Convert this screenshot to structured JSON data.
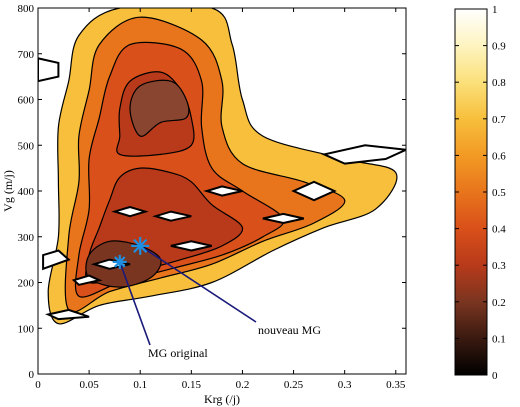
{
  "chart_data": {
    "type": "heatmap",
    "xlabel": "Krg (/j)",
    "ylabel": "Vg (m/j)",
    "xlim": [
      0,
      0.36
    ],
    "ylim": [
      0,
      800
    ],
    "x_ticks": [
      "0",
      "0.05",
      "0.1",
      "0.15",
      "0.2",
      "0.25",
      "0.3",
      "0.35"
    ],
    "y_ticks": [
      "0",
      "100",
      "200",
      "300",
      "400",
      "500",
      "600",
      "700",
      "800"
    ],
    "colorbar": {
      "range": [
        0,
        1
      ],
      "ticks": [
        "0",
        "0.1",
        "0.2",
        "0.3",
        "0.4",
        "0.5",
        "0.6",
        "0.7",
        "0.8",
        "0.9",
        "1"
      ],
      "colormap": "hot",
      "stops": [
        "#000000",
        "#3a1a10",
        "#7a3520",
        "#b83a1a",
        "#d9501a",
        "#e8751c",
        "#f29a24",
        "#f7bf3c",
        "#fbe07a",
        "#fdf4c0",
        "#ffffff"
      ]
    },
    "annotations": [
      {
        "label": "nouveau MG",
        "x": 0.1,
        "y": 280,
        "marker_color": "#1e8fe0"
      },
      {
        "label": "MG original",
        "x": 0.08,
        "y": 245,
        "marker_color": "#1e8fe0"
      }
    ],
    "contour_regions": [
      {
        "level": 0.6,
        "color": "#f7bf3c",
        "points": [
          [
            0.02,
            110
          ],
          [
            0.06,
            150
          ],
          [
            0.11,
            170
          ],
          [
            0.17,
            200
          ],
          [
            0.23,
            270
          ],
          [
            0.28,
            320
          ],
          [
            0.33,
            360
          ],
          [
            0.35,
            440
          ],
          [
            0.3,
            470
          ],
          [
            0.22,
            520
          ],
          [
            0.2,
            600
          ],
          [
            0.19,
            720
          ],
          [
            0.17,
            800
          ],
          [
            0.08,
            800
          ],
          [
            0.04,
            740
          ],
          [
            0.03,
            640
          ],
          [
            0.02,
            540
          ],
          [
            0.02,
            420
          ],
          [
            0.02,
            300
          ],
          [
            0.01,
            180
          ]
        ]
      },
      {
        "level": 0.5,
        "color": "#e8751c",
        "points": [
          [
            0.03,
            140
          ],
          [
            0.07,
            180
          ],
          [
            0.12,
            210
          ],
          [
            0.17,
            240
          ],
          [
            0.22,
            290
          ],
          [
            0.27,
            330
          ],
          [
            0.3,
            380
          ],
          [
            0.26,
            420
          ],
          [
            0.2,
            460
          ],
          [
            0.18,
            540
          ],
          [
            0.18,
            640
          ],
          [
            0.16,
            730
          ],
          [
            0.1,
            780
          ],
          [
            0.06,
            720
          ],
          [
            0.05,
            620
          ],
          [
            0.04,
            520
          ],
          [
            0.04,
            420
          ],
          [
            0.03,
            300
          ]
        ]
      },
      {
        "level": 0.4,
        "color": "#d9501a",
        "points": [
          [
            0.04,
            170
          ],
          [
            0.08,
            200
          ],
          [
            0.13,
            230
          ],
          [
            0.18,
            260
          ],
          [
            0.22,
            300
          ],
          [
            0.24,
            340
          ],
          [
            0.2,
            400
          ],
          [
            0.17,
            450
          ],
          [
            0.16,
            540
          ],
          [
            0.16,
            640
          ],
          [
            0.14,
            710
          ],
          [
            0.09,
            720
          ],
          [
            0.07,
            650
          ],
          [
            0.06,
            560
          ],
          [
            0.05,
            470
          ],
          [
            0.05,
            360
          ],
          [
            0.04,
            260
          ]
        ]
      },
      {
        "level": 0.3,
        "color": "#b83a1a",
        "points": [
          [
            0.05,
            200
          ],
          [
            0.09,
            220
          ],
          [
            0.14,
            250
          ],
          [
            0.18,
            280
          ],
          [
            0.2,
            320
          ],
          [
            0.17,
            370
          ],
          [
            0.15,
            420
          ],
          [
            0.13,
            440
          ],
          [
            0.1,
            450
          ],
          [
            0.08,
            430
          ],
          [
            0.07,
            380
          ],
          [
            0.06,
            320
          ],
          [
            0.05,
            260
          ]
        ]
      },
      {
        "level": 0.3,
        "color": "#b83a1a",
        "points": [
          [
            0.08,
            480
          ],
          [
            0.12,
            480
          ],
          [
            0.15,
            500
          ],
          [
            0.15,
            560
          ],
          [
            0.14,
            620
          ],
          [
            0.12,
            660
          ],
          [
            0.09,
            640
          ],
          [
            0.08,
            580
          ],
          [
            0.08,
            520
          ]
        ]
      },
      {
        "level": 0.2,
        "color": "#7a3520",
        "points": [
          [
            0.05,
            210
          ],
          [
            0.08,
            190
          ],
          [
            0.11,
            210
          ],
          [
            0.12,
            250
          ],
          [
            0.1,
            280
          ],
          [
            0.07,
            290
          ],
          [
            0.05,
            260
          ]
        ]
      },
      {
        "level": 0.2,
        "color": "#8a4530",
        "points": [
          [
            0.1,
            520
          ],
          [
            0.12,
            550
          ],
          [
            0.145,
            560
          ],
          [
            0.145,
            600
          ],
          [
            0.13,
            640
          ],
          [
            0.1,
            630
          ],
          [
            0.09,
            580
          ]
        ]
      }
    ],
    "holes": [
      [
        [
          0.005,
          230
        ],
        [
          0.03,
          250
        ],
        [
          0.02,
          270
        ],
        [
          0.005,
          260
        ]
      ],
      [
        [
          0.04,
          195
        ],
        [
          0.06,
          205
        ],
        [
          0.05,
          215
        ],
        [
          0.035,
          205
        ]
      ],
      [
        [
          0.09,
          345
        ],
        [
          0.105,
          355
        ],
        [
          0.09,
          365
        ],
        [
          0.075,
          355
        ]
      ],
      [
        [
          0.13,
          335
        ],
        [
          0.15,
          345
        ],
        [
          0.13,
          355
        ],
        [
          0.115,
          345
        ]
      ],
      [
        [
          0.18,
          390
        ],
        [
          0.2,
          400
        ],
        [
          0.18,
          410
        ],
        [
          0.165,
          400
        ]
      ],
      [
        [
          0.27,
          380
        ],
        [
          0.29,
          400
        ],
        [
          0.27,
          420
        ],
        [
          0.25,
          400
        ]
      ],
      [
        [
          0.24,
          330
        ],
        [
          0.26,
          340
        ],
        [
          0.24,
          350
        ],
        [
          0.22,
          340
        ]
      ],
      [
        [
          0.15,
          270
        ],
        [
          0.17,
          280
        ],
        [
          0.15,
          290
        ],
        [
          0.13,
          280
        ]
      ],
      [
        [
          0.07,
          230
        ],
        [
          0.09,
          240
        ],
        [
          0.07,
          250
        ],
        [
          0.055,
          240
        ]
      ],
      [
        [
          0.02,
          120
        ],
        [
          0.05,
          125
        ],
        [
          0.03,
          140
        ],
        [
          0.01,
          130
        ]
      ],
      [
        [
          0.3,
          460
        ],
        [
          0.34,
          470
        ],
        [
          0.36,
          490
        ],
        [
          0.32,
          500
        ],
        [
          0.28,
          480
        ]
      ],
      [
        [
          0.0,
          640
        ],
        [
          0.02,
          650
        ],
        [
          0.02,
          680
        ],
        [
          0.0,
          690
        ]
      ]
    ]
  }
}
